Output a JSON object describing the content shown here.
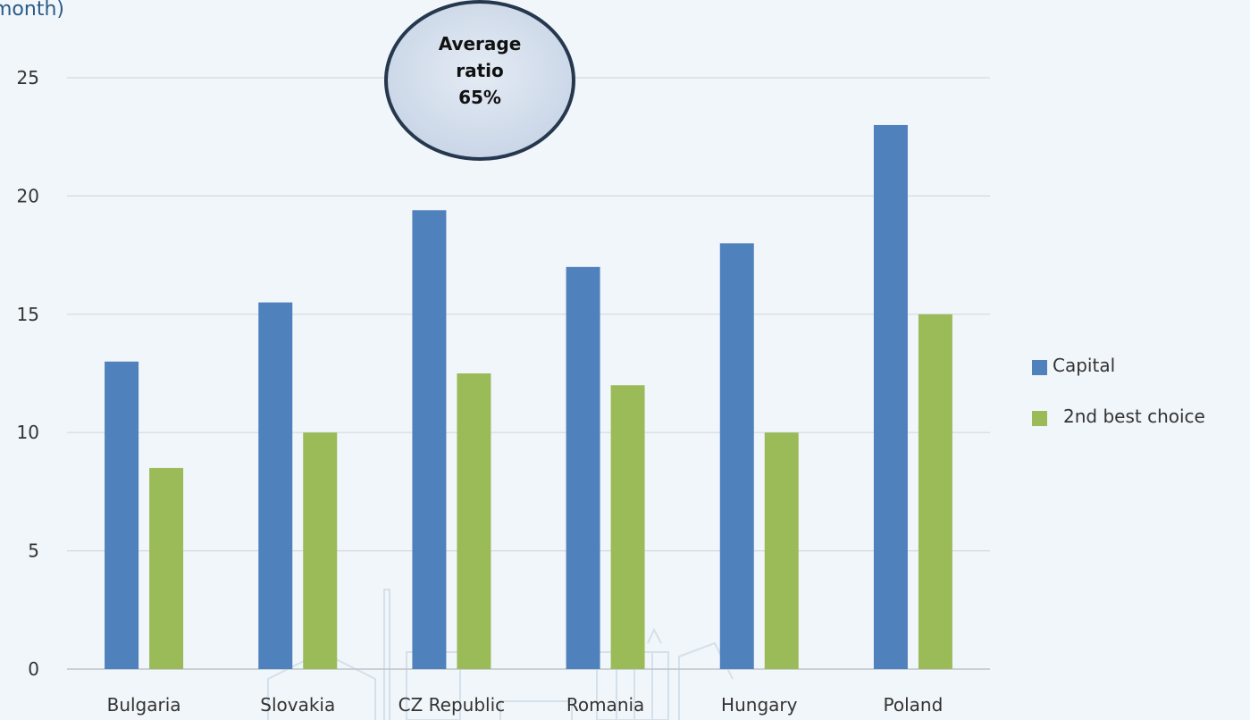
{
  "unit_text": "month)",
  "callout": {
    "lines": [
      "Average",
      "ratio",
      "65%"
    ]
  },
  "colors": {
    "capital": "#4f81bd",
    "second": "#9bbb59",
    "grid": "#d5d9de",
    "axis_text": "#333333",
    "background": "#f1f6fa"
  },
  "chart_data": {
    "type": "bar",
    "categories": [
      "Bulgaria",
      "Slovakia",
      "CZ Republic",
      "Romania",
      "Hungary",
      "Poland"
    ],
    "series": [
      {
        "name": "Capital",
        "values": [
          13,
          15.5,
          19.4,
          17,
          18,
          23
        ]
      },
      {
        "name": "2nd best choice",
        "values": [
          8.5,
          10,
          12.5,
          12,
          10,
          15
        ]
      }
    ],
    "ylim": [
      0,
      25
    ],
    "yticks": [
      "0",
      "5",
      "10",
      "15",
      "20",
      "25"
    ],
    "grid": true,
    "legend": "right"
  }
}
